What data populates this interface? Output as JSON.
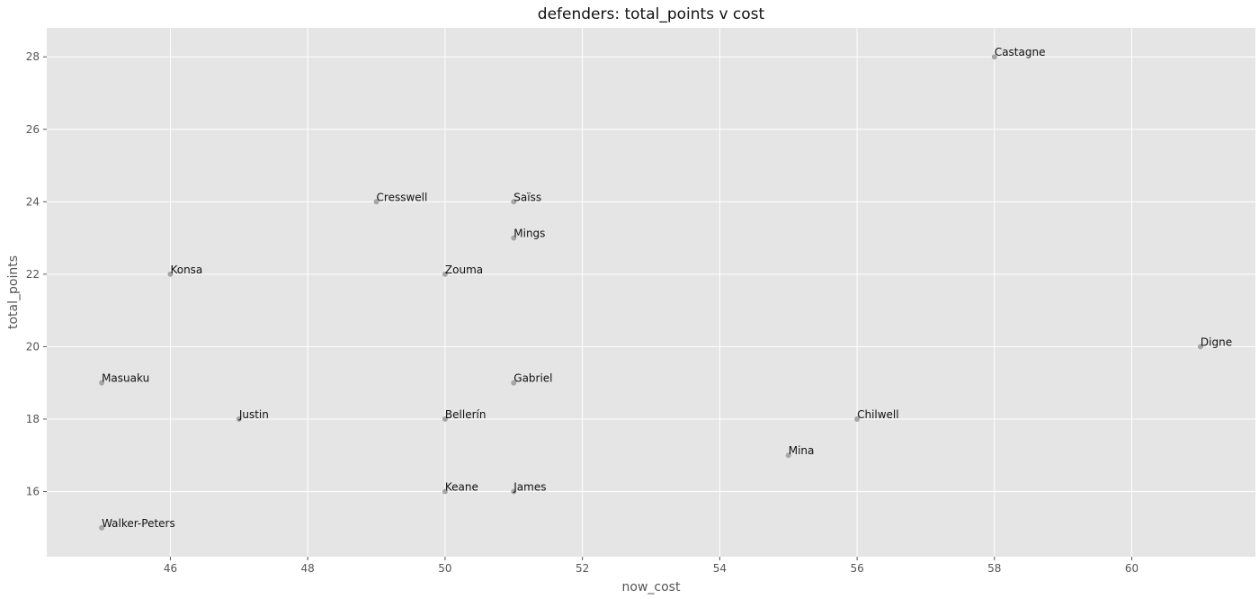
{
  "chart_data": {
    "type": "scatter",
    "title": "defenders: total_points v cost",
    "xlabel": "now_cost",
    "ylabel": "total_points",
    "xlim": [
      44.2,
      61.8
    ],
    "ylim": [
      14.2,
      28.8
    ],
    "xticks": [
      46,
      48,
      50,
      52,
      54,
      56,
      58,
      60
    ],
    "yticks": [
      16,
      18,
      20,
      22,
      24,
      26,
      28
    ],
    "grid": true,
    "background": "#e5e5e5",
    "point_color": "#a8a8a8",
    "points": [
      {
        "label": "Castagne",
        "x": 58,
        "y": 28
      },
      {
        "label": "Cresswell",
        "x": 49,
        "y": 24
      },
      {
        "label": "Saïss",
        "x": 51,
        "y": 24
      },
      {
        "label": "Mings",
        "x": 51,
        "y": 23
      },
      {
        "label": "Konsa",
        "x": 46,
        "y": 22
      },
      {
        "label": "Zouma",
        "x": 50,
        "y": 22
      },
      {
        "label": "Digne",
        "x": 61,
        "y": 20
      },
      {
        "label": "Masuaku",
        "x": 45,
        "y": 19
      },
      {
        "label": "Gabriel",
        "x": 51,
        "y": 19
      },
      {
        "label": "Justin",
        "x": 47,
        "y": 18
      },
      {
        "label": "Bellerín",
        "x": 50,
        "y": 18
      },
      {
        "label": "Chilwell",
        "x": 56,
        "y": 18
      },
      {
        "label": "Mina",
        "x": 55,
        "y": 17
      },
      {
        "label": "Keane",
        "x": 50,
        "y": 16
      },
      {
        "label": "James",
        "x": 51,
        "y": 16
      },
      {
        "label": "Walker-Peters",
        "x": 45,
        "y": 15
      }
    ]
  }
}
